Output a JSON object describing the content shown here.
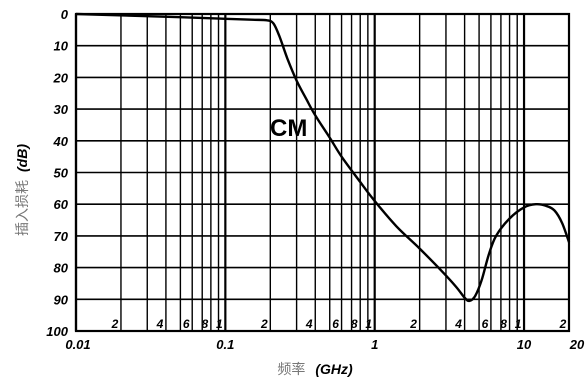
{
  "chart_data": {
    "type": "line",
    "xscale": "log",
    "xlim": [
      0.01,
      20
    ],
    "ylim": [
      0,
      100
    ],
    "y_inverted": true,
    "grid": true,
    "x_major_ticks": [
      {
        "value": 0.01,
        "label": "0.01"
      },
      {
        "value": 0.1,
        "label": "0.1"
      },
      {
        "value": 1,
        "label": "1"
      },
      {
        "value": 10,
        "label": "10"
      },
      {
        "value": 20,
        "label": "20"
      }
    ],
    "x_minor_labels": [
      {
        "value": 0.02,
        "label": "2"
      },
      {
        "value": 0.04,
        "label": "4"
      },
      {
        "value": 0.06,
        "label": "6"
      },
      {
        "value": 0.08,
        "label": "8"
      },
      {
        "value": 0.1,
        "label": "1"
      },
      {
        "value": 0.2,
        "label": "2"
      },
      {
        "value": 0.4,
        "label": "4"
      },
      {
        "value": 0.6,
        "label": "6"
      },
      {
        "value": 0.8,
        "label": "8"
      },
      {
        "value": 1,
        "label": "1"
      },
      {
        "value": 2,
        "label": "2"
      },
      {
        "value": 4,
        "label": "4"
      },
      {
        "value": 6,
        "label": "6"
      },
      {
        "value": 8,
        "label": "8"
      },
      {
        "value": 10,
        "label": "1"
      },
      {
        "value": 20,
        "label": "2"
      }
    ],
    "y_ticks": [
      {
        "value": 0,
        "label": "0"
      },
      {
        "value": 10,
        "label": "10"
      },
      {
        "value": 20,
        "label": "20"
      },
      {
        "value": 30,
        "label": "30"
      },
      {
        "value": 40,
        "label": "40"
      },
      {
        "value": 50,
        "label": "50"
      },
      {
        "value": 60,
        "label": "60"
      },
      {
        "value": 70,
        "label": "70"
      },
      {
        "value": 80,
        "label": "80"
      },
      {
        "value": 90,
        "label": "90"
      },
      {
        "value": 100,
        "label": "100"
      }
    ],
    "ylabel_cn": "插入损耗",
    "ylabel_unit": "(dB)",
    "xlabel_cn": "频率",
    "xlabel_unit": "(GHz)",
    "annotation": "CM",
    "series": [
      {
        "name": "CM",
        "x": [
          0.01,
          0.05,
          0.1,
          0.15,
          0.19,
          0.21,
          0.23,
          0.26,
          0.3,
          0.35,
          0.4,
          0.5,
          0.6,
          0.8,
          1.0,
          1.4,
          2.0,
          2.8,
          3.5,
          4.0,
          4.3,
          4.7,
          5.2,
          5.8,
          6.5,
          8.0,
          10.0,
          12.0,
          14.0,
          16.0,
          18.0,
          20.0
        ],
        "y": [
          0,
          1,
          1.5,
          1.8,
          2,
          3,
          7,
          14,
          21,
          27,
          32,
          39,
          45,
          53,
          59,
          67,
          74,
          81,
          86,
          89.5,
          90.5,
          89,
          84,
          76,
          70,
          64.5,
          61,
          60,
          60.5,
          62,
          66,
          72
        ]
      }
    ]
  }
}
